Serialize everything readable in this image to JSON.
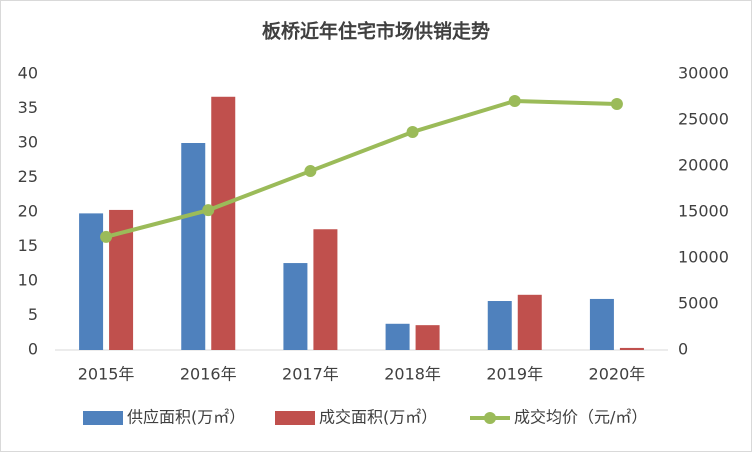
{
  "chart_data": {
    "type": "bar-line",
    "title": "板桥近年住宅市场供销走势",
    "categories": [
      "2015年",
      "2016年",
      "2017年",
      "2018年",
      "2019年",
      "2020年"
    ],
    "series": [
      {
        "name": "供应面积(万㎡）",
        "color": "#4f81bd",
        "type": "bar",
        "values": [
          19.8,
          30.0,
          12.6,
          3.8,
          7.1,
          7.4
        ]
      },
      {
        "name": "成交面积(万㎡）",
        "color": "#c0504d",
        "type": "bar",
        "values": [
          20.3,
          36.7,
          17.5,
          3.6,
          8.0,
          0.3
        ]
      },
      {
        "name": "成交均价（元/㎡）",
        "color": "#9bbb59",
        "type": "line",
        "axis": "y2",
        "values": [
          12300,
          15200,
          19450,
          23700,
          27070,
          26740
        ]
      }
    ],
    "ylim": [
      0,
      40
    ],
    "yticks": [
      0,
      5,
      10,
      15,
      20,
      25,
      30,
      35,
      40
    ],
    "y2lim": [
      0,
      30000
    ],
    "y2ticks": [
      0,
      5000,
      10000,
      15000,
      20000,
      25000,
      30000
    ],
    "grid": false,
    "legend": "bottom"
  }
}
